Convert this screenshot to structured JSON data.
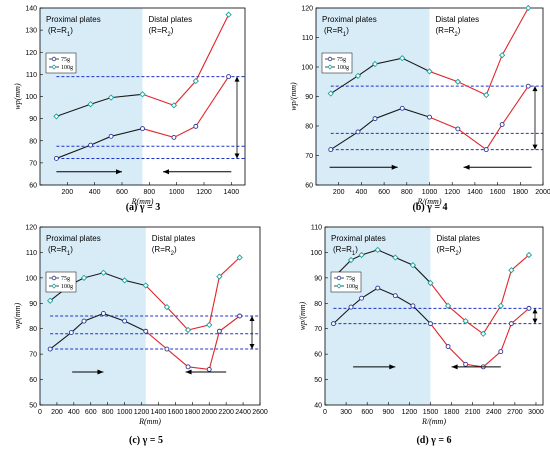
{
  "chart_data": [
    {
      "type": "line",
      "caption": "(a) γ = 3",
      "xlabel": "R(mm)",
      "ylabel": "wp(mm)",
      "xlim": [
        0,
        1500
      ],
      "ylim": [
        60,
        140
      ],
      "xticks": [
        200,
        400,
        600,
        800,
        1000,
        1200,
        1400
      ],
      "yticks": [
        60,
        70,
        80,
        90,
        100,
        110,
        120,
        130,
        140
      ],
      "region_split": 750,
      "region_labels": [
        "Proximal plates",
        "(R=R1)",
        "Distal plates",
        "(R=R2)"
      ],
      "legend": [
        "75g",
        "100g"
      ],
      "legend_position": "upper-left",
      "series": [
        {
          "name": "75g",
          "proximal": {
            "x": [
              120,
              370,
              520,
              750
            ],
            "y": [
              72,
              78,
              82,
              85.5
            ]
          },
          "distal": {
            "x": [
              750,
              980,
              1140,
              1380
            ],
            "y": [
              85.5,
              81.5,
              86.5,
              109
            ]
          }
        },
        {
          "name": "100g",
          "proximal": {
            "x": [
              120,
              370,
              520,
              750
            ],
            "y": [
              91,
              96.5,
              99.5,
              101
            ]
          },
          "distal": {
            "x": [
              750,
              980,
              1140,
              1380
            ],
            "y": [
              101,
              96,
              107,
              137
            ]
          }
        }
      ],
      "ref_lines": [
        72,
        77.5,
        109
      ],
      "arrows": [
        {
          "from": 120,
          "to": 600,
          "y": 66
        },
        {
          "from": 1400,
          "to": 900,
          "y": 66
        }
      ]
    },
    {
      "type": "line",
      "caption": "(b) γ = 4",
      "xlabel": "R/(mm)",
      "ylabel": "wp/(mm)",
      "xlim": [
        0,
        2000
      ],
      "ylim": [
        60,
        120
      ],
      "xticks": [
        200,
        400,
        600,
        800,
        1000,
        1200,
        1400,
        1600,
        1800,
        2000
      ],
      "yticks": [
        60,
        70,
        80,
        90,
        100,
        110,
        120
      ],
      "region_split": 1000,
      "region_labels": [
        "Proximal plates",
        "(R=R1)",
        "Distal plates",
        "(R=R2)"
      ],
      "legend": [
        "75g",
        "100g"
      ],
      "legend_position": "upper-left",
      "series": [
        {
          "name": "75g",
          "proximal": {
            "x": [
              130,
              370,
              520,
              760,
              1000
            ],
            "y": [
              72,
              78,
              82.5,
              86,
              83
            ]
          },
          "distal": {
            "x": [
              1000,
              1250,
              1500,
              1640,
              1870
            ],
            "y": [
              83,
              79,
              72,
              80.5,
              93.5
            ]
          }
        },
        {
          "name": "100g",
          "proximal": {
            "x": [
              130,
              370,
              520,
              760,
              1000
            ],
            "y": [
              91,
              97,
              101,
              103,
              98.5
            ]
          },
          "distal": {
            "x": [
              1000,
              1250,
              1500,
              1640,
              1870
            ],
            "y": [
              98.5,
              95,
              90.5,
              104,
              120
            ]
          }
        }
      ],
      "ref_lines": [
        72,
        77.5,
        93.5
      ],
      "arrows": [
        {
          "from": 120,
          "to": 720,
          "y": 66
        },
        {
          "from": 1900,
          "to": 1300,
          "y": 66
        }
      ]
    },
    {
      "type": "line",
      "caption": "(c) γ = 5",
      "xlabel": "R(mm)",
      "ylabel": "wp(mm)",
      "xlim": [
        0,
        2600
      ],
      "ylim": [
        50,
        120
      ],
      "xticks": [
        0,
        200,
        400,
        600,
        800,
        1000,
        1200,
        1400,
        1600,
        1800,
        2000,
        2200,
        2400,
        2600
      ],
      "yticks": [
        50,
        60,
        70,
        80,
        90,
        100,
        110,
        120
      ],
      "region_split": 1250,
      "region_labels": [
        "Proximal plates",
        "(R=R1)",
        "Distal plates",
        "(R=R2)"
      ],
      "legend": [
        "75g",
        "100g"
      ],
      "legend_position": "upper-left",
      "series": [
        {
          "name": "75g",
          "proximal": {
            "x": [
              120,
              370,
              520,
              750,
              1000,
              1250
            ],
            "y": [
              72,
              78.5,
              83,
              86,
              83,
              79
            ]
          },
          "distal": {
            "x": [
              1250,
              1500,
              1750,
              2000,
              2120,
              2360
            ],
            "y": [
              79,
              72,
              65,
              64,
              79,
              85
            ]
          }
        },
        {
          "name": "100g",
          "proximal": {
            "x": [
              120,
              370,
              520,
              750,
              1000,
              1250
            ],
            "y": [
              91,
              97.5,
              100,
              102,
              99,
              97
            ]
          },
          "distal": {
            "x": [
              1250,
              1500,
              1750,
              2000,
              2120,
              2360
            ],
            "y": [
              97,
              88.5,
              79.5,
              81.5,
              100.5,
              108
            ]
          }
        }
      ],
      "ref_lines": [
        72,
        78,
        85
      ],
      "arrows": [
        {
          "from": 380,
          "to": 750,
          "y": 63
        },
        {
          "from": 2200,
          "to": 1720,
          "y": 63
        }
      ]
    },
    {
      "type": "line",
      "caption": "(d) γ = 6",
      "xlabel": "R/(mm)",
      "ylabel": "wp/(mm)",
      "xlim": [
        0,
        3100
      ],
      "ylim": [
        40,
        110
      ],
      "xticks": [
        0,
        300,
        600,
        900,
        1200,
        1500,
        1800,
        2100,
        2400,
        2700,
        3000
      ],
      "yticks": [
        40,
        50,
        60,
        70,
        80,
        90,
        100,
        110
      ],
      "region_split": 1500,
      "region_labels": [
        "Proximal plates",
        "(R=R1)",
        "Distal plates",
        "(R=R2)"
      ],
      "legend": [
        "75g",
        "100g"
      ],
      "legend_position": "upper-left",
      "series": [
        {
          "name": "75g",
          "proximal": {
            "x": [
              120,
              370,
              520,
              750,
              1000,
              1250,
              1500
            ],
            "y": [
              72,
              78.5,
              82,
              86,
              83,
              79,
              72
            ]
          },
          "distal": {
            "x": [
              1500,
              1750,
              2000,
              2250,
              2500,
              2650,
              2900
            ],
            "y": [
              72,
              63,
              56,
              55,
              61,
              72,
              78
            ]
          }
        },
        {
          "name": "100g",
          "proximal": {
            "x": [
              120,
              370,
              520,
              750,
              1000,
              1250,
              1500
            ],
            "y": [
              90,
              97,
              99,
              101,
              98,
              95,
              88
            ]
          },
          "distal": {
            "x": [
              1500,
              1750,
              2000,
              2250,
              2500,
              2650,
              2900
            ],
            "y": [
              88,
              79,
              73,
              68,
              79,
              93,
              99
            ]
          }
        }
      ],
      "ref_lines": [
        72,
        78
      ],
      "arrows": [
        {
          "from": 400,
          "to": 1000,
          "y": 55
        },
        {
          "from": 2500,
          "to": 1800,
          "y": 55
        }
      ]
    }
  ],
  "colors": {
    "shade": "#d8ecf8",
    "proximal_line": "#1a1a1a",
    "distal_line": "#e0262b",
    "marker_75g": "#2b3a9a",
    "marker_100g": "#1aa39a",
    "ref_line": "#1f33c8",
    "bracket_marker": "#f0a030"
  }
}
